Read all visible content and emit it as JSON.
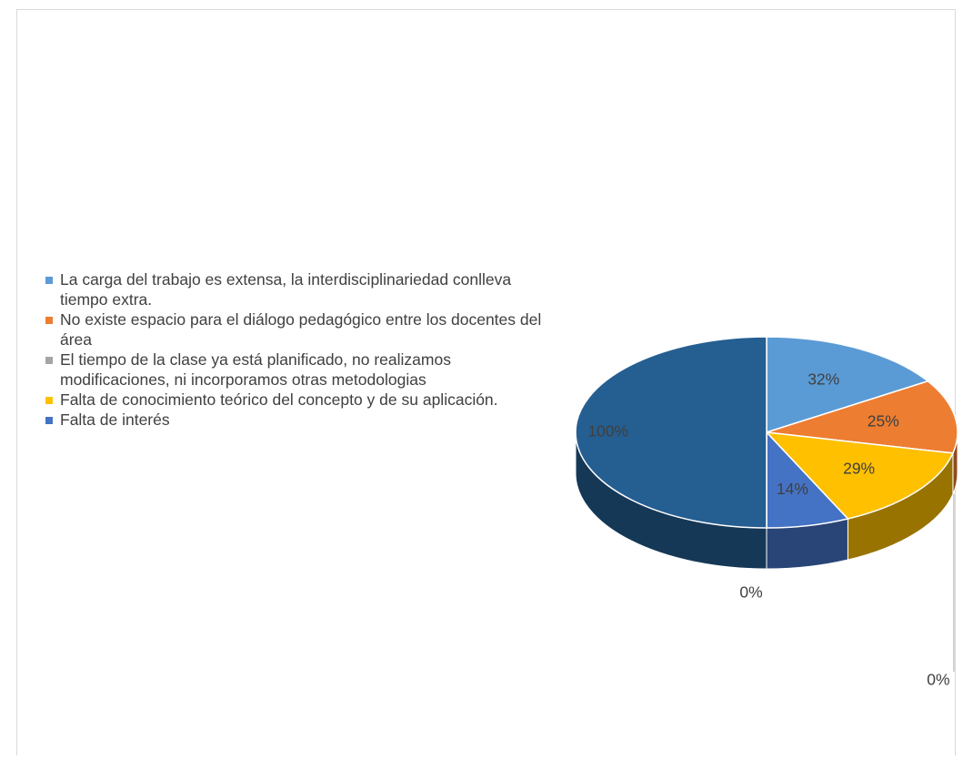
{
  "chart_data": {
    "type": "pie3d",
    "categories": [
      "La carga del trabajo es extensa, la interdisciplinariedad conlleva tiempo extra.",
      "No existe espacio para el diálogo pedagógico entre los docentes del área",
      "El tiempo de la clase ya está planificado, no realizamos modificaciones, ni incorporamos otras metodologias",
      "Falta de conocimiento teórico del concepto y  de su aplicación.",
      "Falta de interés",
      null,
      null
    ],
    "values": [
      32,
      25,
      0,
      29,
      14,
      0,
      100
    ],
    "value_labels": [
      "32%",
      "25%",
      "0%",
      "29%",
      "14%",
      "0%",
      "100%"
    ],
    "colors": [
      "#5b9bd5",
      "#ed7d31",
      "#a5a5a5",
      "#ffc000",
      "#4472c4",
      "#70ad47",
      "#255e91"
    ],
    "legend": "left"
  }
}
